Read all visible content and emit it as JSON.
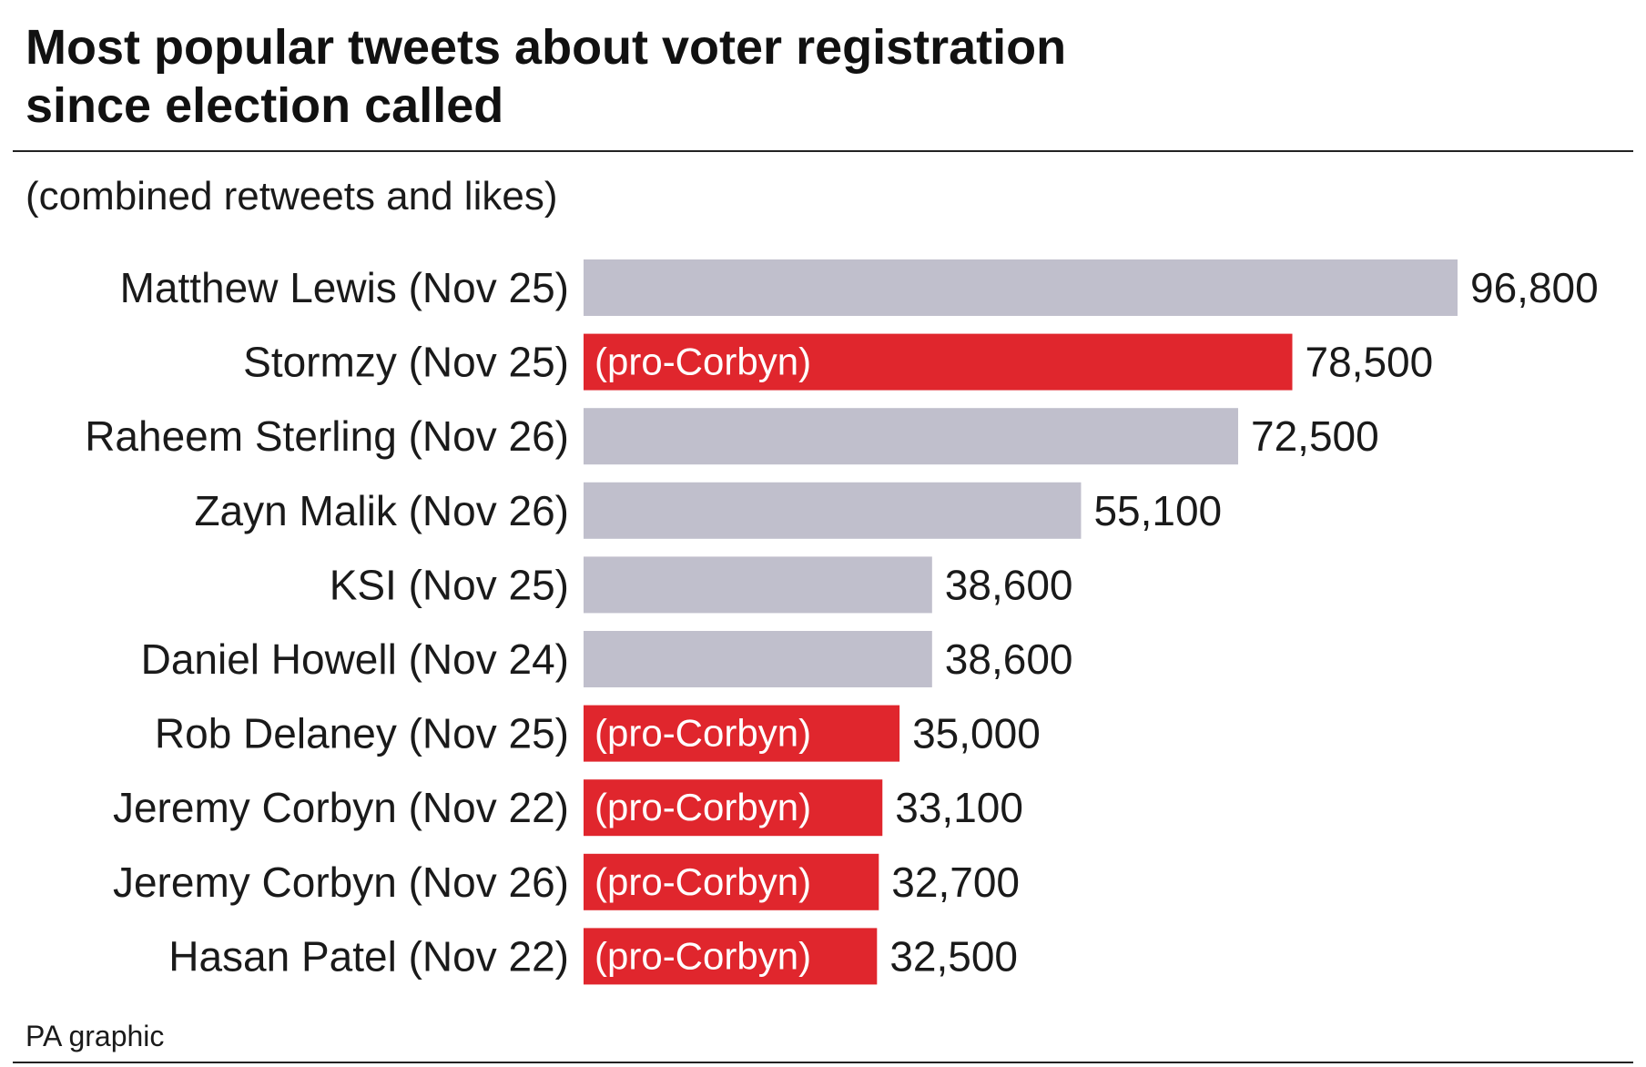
{
  "header": {
    "title_line1": "Most popular tweets about voter registration",
    "title_line2": "since election called",
    "subtitle": "(combined retweets and likes)"
  },
  "footer": {
    "source": "PA graphic"
  },
  "colors": {
    "neutral": "#c0bfcc",
    "highlight": "#e0262d",
    "text": "#1a1a1a",
    "bar_label": "#ffffff"
  },
  "chart_data": {
    "type": "bar",
    "orientation": "horizontal",
    "categories": [
      "Matthew Lewis (Nov 25)",
      "Stormzy (Nov 25)",
      "Raheem Sterling (Nov 26)",
      "Zayn Malik (Nov 26)",
      "KSI (Nov 25)",
      "Daniel Howell (Nov 24)",
      "Rob Delaney (Nov 25)",
      "Jeremy Corbyn (Nov 22)",
      "Jeremy Corbyn (Nov 26)",
      "Hasan Patel (Nov 22)"
    ],
    "values": [
      96800,
      78500,
      72500,
      55100,
      38600,
      38600,
      35000,
      33100,
      32700,
      32500
    ],
    "value_labels": [
      "96,800",
      "78,500",
      "72,500",
      "55,100",
      "38,600",
      "38,600",
      "35,000",
      "33,100",
      "32,700",
      "32,500"
    ],
    "highlighted": [
      false,
      true,
      false,
      false,
      false,
      false,
      true,
      true,
      true,
      true
    ],
    "bar_annotations": [
      "",
      "(pro-Corbyn)",
      "",
      "",
      "",
      "",
      "(pro-Corbyn)",
      "(pro-Corbyn)",
      "(pro-Corbyn)",
      "(pro-Corbyn)"
    ],
    "xlim": [
      0,
      96800
    ],
    "grid": false,
    "legend": "none"
  }
}
